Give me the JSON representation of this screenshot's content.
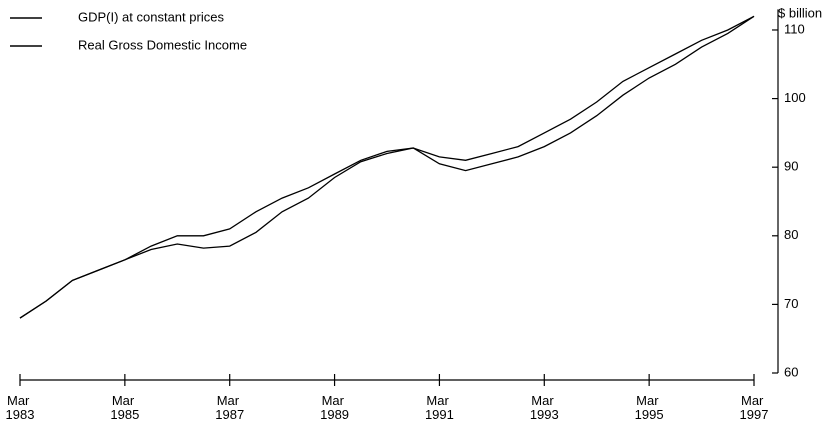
{
  "chart_data": {
    "type": "line",
    "y_axis_label": "$ billion",
    "x": [
      1983,
      1983.5,
      1984,
      1984.5,
      1985,
      1985.5,
      1986,
      1986.5,
      1987,
      1987.5,
      1988,
      1988.5,
      1989,
      1989.5,
      1990,
      1990.5,
      1991,
      1991.5,
      1992,
      1992.5,
      1993,
      1993.5,
      1994,
      1994.5,
      1995,
      1995.5,
      1996,
      1996.5,
      1997
    ],
    "series": [
      {
        "name": "GDP(I) at constant prices",
        "color": "#000000",
        "values": [
          68,
          70.5,
          73.5,
          75,
          76.5,
          78.5,
          80,
          80,
          81,
          83.5,
          85.5,
          87,
          89,
          91,
          92.3,
          92.8,
          91.5,
          91,
          92,
          93,
          95,
          97,
          99.5,
          102.5,
          104.5,
          106.5,
          108.5,
          110,
          112
        ]
      },
      {
        "name": "Real Gross Domestic Income",
        "color": "#000000",
        "values": [
          68,
          70.5,
          73.5,
          75,
          76.5,
          78,
          78.8,
          78.2,
          78.5,
          80.5,
          83.5,
          85.5,
          88.5,
          90.8,
          92,
          92.8,
          90.5,
          89.5,
          90.5,
          91.5,
          93,
          95,
          97.5,
          100.5,
          103,
          105,
          107.5,
          109.5,
          112
        ]
      }
    ],
    "xlim": [
      1983,
      1997
    ],
    "xticks": [
      {
        "value": 1983,
        "label": "Mar 1983"
      },
      {
        "value": 1985,
        "label": "Mar 1985"
      },
      {
        "value": 1987,
        "label": "Mar 1987"
      },
      {
        "value": 1989,
        "label": "Mar 1989"
      },
      {
        "value": 1991,
        "label": "Mar 1991"
      },
      {
        "value": 1993,
        "label": "Mar 1993"
      },
      {
        "value": 1995,
        "label": "Mar 1995"
      },
      {
        "value": 1997,
        "label": "Mar 1997"
      }
    ],
    "ylim": [
      60,
      113
    ],
    "yticks": [
      60,
      70,
      80,
      90,
      100,
      110
    ],
    "grid": false,
    "legend": "top-left"
  }
}
